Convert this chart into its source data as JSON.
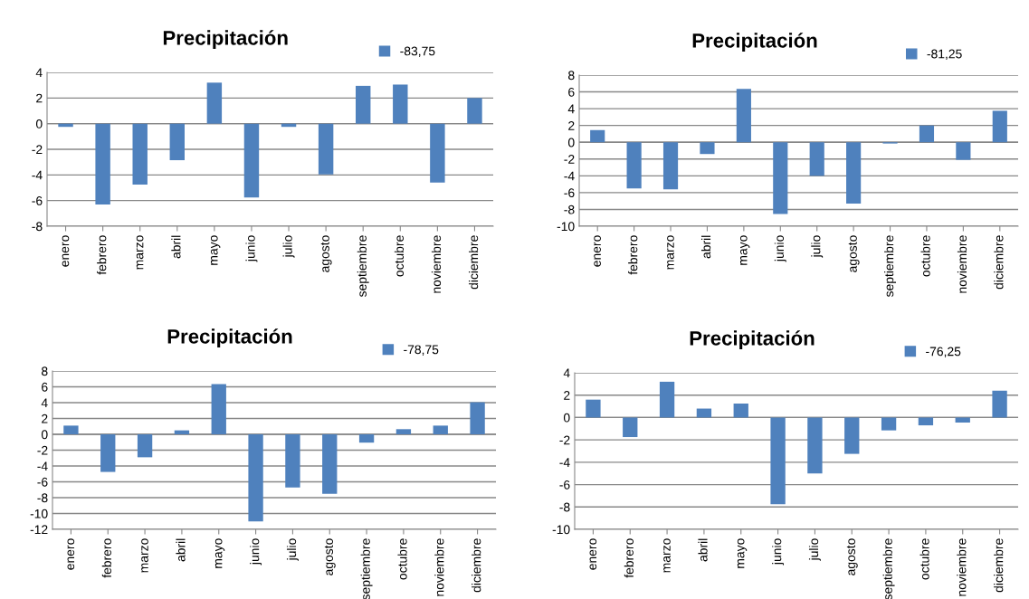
{
  "chart_data": [
    {
      "type": "bar",
      "title": "Precipitación",
      "categories": [
        "enero",
        "febrero",
        "marzo",
        "abril",
        "mayo",
        "junio",
        "julio",
        "agosto",
        "septiembre",
        "octubre",
        "noviembre",
        "diciembre"
      ],
      "series": [
        {
          "name": "-83,75",
          "color": "#4f81bd",
          "values": [
            -0.25,
            -6.3,
            -4.75,
            -2.85,
            3.2,
            -5.75,
            -0.25,
            -3.95,
            2.95,
            3.05,
            -4.6,
            2.0
          ]
        }
      ],
      "ylim": [
        -8,
        4
      ],
      "yticks": [
        -8,
        -6,
        -4,
        -2,
        0,
        2,
        4
      ],
      "grid": "y",
      "legend": "top right"
    },
    {
      "type": "bar",
      "title": "Precipitación",
      "categories": [
        "enero",
        "febrero",
        "marzo",
        "abril",
        "mayo",
        "junio",
        "julio",
        "agosto",
        "septiembre",
        "octubre",
        "noviembre",
        "diciembre"
      ],
      "series": [
        {
          "name": "-81,25",
          "color": "#4f81bd",
          "values": [
            1.45,
            -5.5,
            -5.6,
            -1.4,
            6.35,
            -8.55,
            -4.0,
            -7.3,
            -0.15,
            2.0,
            -2.1,
            3.75
          ]
        }
      ],
      "ylim": [
        -10,
        8
      ],
      "yticks": [
        -10,
        -8,
        -6,
        -4,
        -2,
        0,
        2,
        4,
        6,
        8
      ],
      "grid": "y",
      "legend": "top right"
    },
    {
      "type": "bar",
      "title": "Precipitación",
      "categories": [
        "enero",
        "febrero",
        "marzo",
        "abril",
        "mayo",
        "junio",
        "julio",
        "agosto",
        "septiembre",
        "octubre",
        "noviembre",
        "diciembre"
      ],
      "series": [
        {
          "name": "-78,75",
          "color": "#4f81bd",
          "values": [
            1.1,
            -4.75,
            -2.9,
            0.5,
            6.35,
            -11.0,
            -6.7,
            -7.5,
            -1.05,
            0.65,
            1.1,
            4.05
          ]
        }
      ],
      "ylim": [
        -12,
        8
      ],
      "yticks": [
        -12,
        -10,
        -8,
        -6,
        -4,
        -2,
        0,
        2,
        4,
        6,
        8
      ],
      "grid": "y",
      "legend": "top right"
    },
    {
      "type": "bar",
      "title": "Precipitación",
      "categories": [
        "enero",
        "febrero",
        "marzo",
        "abril",
        "mayo",
        "junio",
        "julio",
        "agosto",
        "septiembre",
        "octubre",
        "noviembre",
        "diciembre"
      ],
      "series": [
        {
          "name": "-76,25",
          "color": "#4f81bd",
          "values": [
            1.6,
            -1.75,
            3.2,
            0.8,
            1.25,
            -7.75,
            -5.0,
            -3.25,
            -1.15,
            -0.7,
            -0.45,
            2.4
          ]
        }
      ],
      "ylim": [
        -10,
        4
      ],
      "yticks": [
        -10,
        -8,
        -6,
        -4,
        -2,
        0,
        2,
        4
      ],
      "grid": "y",
      "legend": "top right"
    }
  ]
}
